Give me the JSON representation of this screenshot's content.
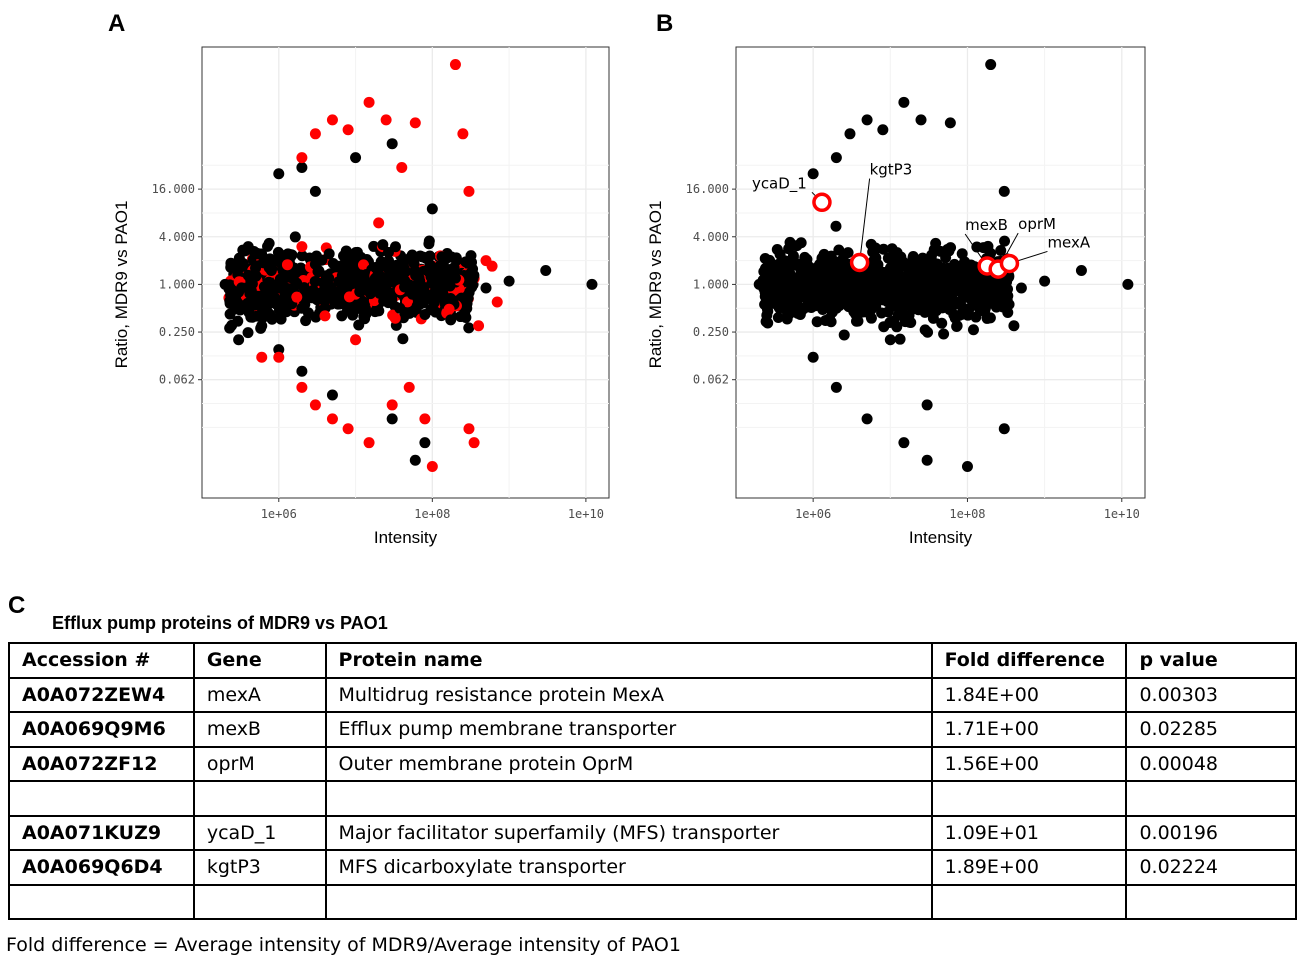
{
  "panels": {
    "a_label": "A",
    "b_label": "B",
    "c_label": "C"
  },
  "colors": {
    "significant": "#ff0000",
    "other": "#000000",
    "highlight_ring": "#ff0000",
    "grid": "#ebebeb"
  },
  "chart_data": [
    {
      "type": "scatter",
      "panel": "A",
      "xlabel": "Intensity",
      "ylabel": "Ratio, MDR9 vs PAO1",
      "x_scale": "log10",
      "y_scale": "log2",
      "x_ticks": [
        "1e+06",
        "1e+08",
        "1e+10"
      ],
      "y_ticks": [
        "16.000",
        "4.000",
        "1.000",
        "0.250",
        "0.062"
      ],
      "xlim": [
        100000,
        20000000000
      ],
      "ylim": [
        0.002,
        1000
      ],
      "grid": true,
      "series": [
        {
          "color": "#000000",
          "points": [
            [
              200000,
              1.0
            ],
            [
              300000,
              0.8
            ],
            [
              400000,
              1.3
            ],
            [
              600000,
              0.6
            ],
            [
              800000,
              1.5
            ],
            [
              1000000,
              0.9
            ],
            [
              1500000,
              1.2
            ],
            [
              2000000,
              0.5
            ],
            [
              3000000,
              1.8
            ],
            [
              5000000,
              0.7
            ],
            [
              8000000,
              1.1
            ],
            [
              1000000,
              25
            ],
            [
              2000000,
              30
            ],
            [
              3000000,
              15
            ],
            [
              10000000,
              40
            ],
            [
              30000000,
              60
            ],
            [
              100000000,
              9
            ],
            [
              1000000,
              0.15
            ],
            [
              2000000,
              0.08
            ],
            [
              5000000,
              0.04
            ],
            [
              30000000,
              0.02
            ],
            [
              80000000,
              0.01
            ],
            [
              60000000,
              0.006
            ],
            [
              200000000,
              1.2
            ],
            [
              500000000,
              0.9
            ],
            [
              1000000000,
              1.1
            ],
            [
              3000000000,
              1.5
            ],
            [
              12000000000,
              1.0
            ],
            [
              300000,
              0.2
            ],
            [
              600000,
              0.3
            ],
            [
              400000,
              3
            ],
            [
              500000,
              2.5
            ]
          ]
        },
        {
          "color": "#ff0000",
          "points": [
            [
              2000000,
              40
            ],
            [
              3000000,
              80
            ],
            [
              5000000,
              120
            ],
            [
              8000000,
              90
            ],
            [
              15000000,
              200
            ],
            [
              25000000,
              120
            ],
            [
              40000000,
              30
            ],
            [
              60000000,
              110
            ],
            [
              200000000,
              600
            ],
            [
              250000000,
              80
            ],
            [
              300000000,
              15
            ],
            [
              1000000,
              0.12
            ],
            [
              2000000,
              0.05
            ],
            [
              3000000,
              0.03
            ],
            [
              5000000,
              0.02
            ],
            [
              8000000,
              0.015
            ],
            [
              15000000,
              0.01
            ],
            [
              30000000,
              0.03
            ],
            [
              50000000,
              0.05
            ],
            [
              100000000,
              0.005
            ],
            [
              300000000,
              0.015
            ],
            [
              350000000,
              0.01
            ],
            [
              500000000,
              2.0
            ],
            [
              600000000,
              1.7
            ],
            [
              700000000,
              0.6
            ],
            [
              400000000,
              0.3
            ],
            [
              600000,
              0.12
            ],
            [
              2000000,
              3
            ],
            [
              4000000,
              0.4
            ],
            [
              10000000,
              0.2
            ],
            [
              20000000,
              6
            ],
            [
              80000000,
              0.02
            ]
          ]
        }
      ]
    },
    {
      "type": "scatter",
      "panel": "B",
      "xlabel": "Intensity",
      "ylabel": "Ratio, MDR9 vs PAO1",
      "x_scale": "log10",
      "y_scale": "log2",
      "x_ticks": [
        "1e+06",
        "1e+08",
        "1e+10"
      ],
      "y_ticks": [
        "16.000",
        "4.000",
        "1.000",
        "0.250",
        "0.062"
      ],
      "xlim": [
        100000,
        20000000000
      ],
      "ylim": [
        0.002,
        1000
      ],
      "grid": true,
      "series": [
        {
          "color": "#000000",
          "points": [
            [
              200000,
              1.0
            ],
            [
              300000,
              0.8
            ],
            [
              400000,
              1.3
            ],
            [
              600000,
              0.6
            ],
            [
              800000,
              1.5
            ],
            [
              1000000,
              0.9
            ],
            [
              1500000,
              1.2
            ],
            [
              2000000,
              0.5
            ],
            [
              3000000,
              1.8
            ],
            [
              5000000,
              0.7
            ],
            [
              8000000,
              1.1
            ],
            [
              2000000,
              40
            ],
            [
              3000000,
              80
            ],
            [
              5000000,
              120
            ],
            [
              8000000,
              90
            ],
            [
              15000000,
              200
            ],
            [
              25000000,
              120
            ],
            [
              60000000,
              110
            ],
            [
              200000000,
              600
            ],
            [
              300000000,
              15
            ],
            [
              1000000,
              0.12
            ],
            [
              2000000,
              0.05
            ],
            [
              5000000,
              0.02
            ],
            [
              15000000,
              0.01
            ],
            [
              30000000,
              0.03
            ],
            [
              100000000,
              0.005
            ],
            [
              300000000,
              0.015
            ],
            [
              200000000,
              1.2
            ],
            [
              500000000,
              0.9
            ],
            [
              1000000000,
              1.1
            ],
            [
              3000000000,
              1.5
            ],
            [
              12000000000,
              1.0
            ],
            [
              400000000,
              0.3
            ],
            [
              10000000,
              0.2
            ],
            [
              1000000,
              25
            ],
            [
              30000000,
              0.006
            ]
          ]
        }
      ],
      "highlighted": [
        {
          "label": "ycaD_1",
          "x": 1300000,
          "y": 10.9
        },
        {
          "label": "kgtP3",
          "x": 4000000,
          "y": 1.89
        },
        {
          "label": "mexB",
          "x": 180000000,
          "y": 1.71
        },
        {
          "label": "oprM",
          "x": 250000000,
          "y": 1.56
        },
        {
          "label": "mexA",
          "x": 350000000,
          "y": 1.84
        }
      ]
    }
  ],
  "table": {
    "title": "Efflux pump proteins of MDR9 vs PAO1",
    "headers": [
      "Accession #",
      "Gene",
      "Protein name",
      "Fold difference",
      "p value"
    ],
    "rows": [
      [
        "A0A072ZEW4",
        "mexA",
        "Multidrug resistance protein MexA",
        "1.84E+00",
        "0.00303"
      ],
      [
        "A0A069Q9M6",
        "mexB",
        "Efflux pump membrane transporter",
        "1.71E+00",
        "0.02285"
      ],
      [
        "A0A072ZF12",
        "oprM",
        "Outer membrane protein OprM",
        "1.56E+00",
        "0.00048"
      ],
      [
        "",
        "",
        "",
        "",
        ""
      ],
      [
        "A0A071KUZ9",
        "ycaD_1",
        "Major facilitator superfamily (MFS) transporter",
        "1.09E+01",
        "0.00196"
      ],
      [
        "A0A069Q6D4",
        "kgtP3",
        "MFS dicarboxylate transporter",
        "1.89E+00",
        "0.02224"
      ],
      [
        "",
        "",
        "",
        "",
        ""
      ]
    ]
  },
  "footnote": "Fold difference = Average intensity of MDR9/Average intensity of PAO1"
}
